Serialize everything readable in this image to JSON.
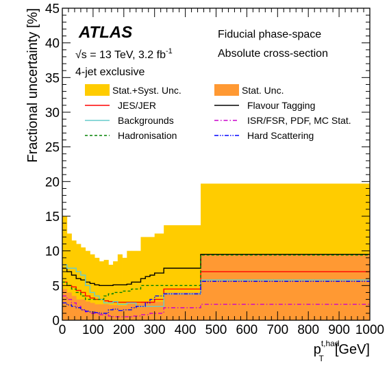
{
  "chart_data": {
    "type": "step",
    "xlabel": "p",
    "xlabel_sup": "t,had",
    "xlabel_sub": "T",
    "xlabel_unit": "[GeV]",
    "ylabel": "Fractional uncertainty [%]",
    "xlim": [
      0,
      1000
    ],
    "ylim": [
      0,
      45
    ],
    "x_ticks": [
      0,
      100,
      200,
      300,
      400,
      500,
      600,
      700,
      800,
      900,
      1000
    ],
    "y_ticks": [
      0,
      5,
      10,
      15,
      20,
      25,
      30,
      35,
      40,
      45
    ],
    "bin_edges": [
      0,
      15,
      30,
      45,
      60,
      75,
      90,
      105,
      120,
      135,
      150,
      165,
      180,
      195,
      210,
      225,
      240,
      255,
      270,
      285,
      300,
      330,
      450,
      1000
    ],
    "annotations": {
      "experiment": "ATLAS",
      "energy": "√s = 13 TeV, 3.2 fb",
      "energy_sup": "-1",
      "selection": "4-jet exclusive",
      "phase_space": "Fiducial phase-space",
      "measurement": "Absolute cross-section"
    },
    "legend": [
      {
        "label": "Stat.+Syst. Unc.",
        "key": "total",
        "style": "fill"
      },
      {
        "label": "Stat. Unc.",
        "key": "stat",
        "style": "fill"
      },
      {
        "label": "JES/JER",
        "key": "jes",
        "style": "solid"
      },
      {
        "label": "Flavour Tagging",
        "key": "flav",
        "style": "solid"
      },
      {
        "label": "Backgrounds",
        "key": "bkg",
        "style": "solid"
      },
      {
        "label": "ISR/FSR, PDF, MC Stat.",
        "key": "isr",
        "style": "dashdot"
      },
      {
        "label": "Hadronisation",
        "key": "had",
        "style": "dashed"
      },
      {
        "label": "Hard Scattering",
        "key": "hs",
        "style": "dashdotdot"
      }
    ],
    "series": [
      {
        "key": "total",
        "color": "#ffcc00",
        "values": [
          15.0,
          12.5,
          11.5,
          11.0,
          10.5,
          10.0,
          9.5,
          9.0,
          8.5,
          8.7,
          8.0,
          8.5,
          9.5,
          9.0,
          10.0,
          10.0,
          10.0,
          12.0,
          12.0,
          12.0,
          12.5,
          13.7,
          19.7
        ]
      },
      {
        "key": "stat",
        "color": "#ff9933",
        "values": [
          4.5,
          4.0,
          3.5,
          3.0,
          3.0,
          2.7,
          2.5,
          2.3,
          2.3,
          2.3,
          2.2,
          2.2,
          2.1,
          2.1,
          2.4,
          2.4,
          2.4,
          2.7,
          2.7,
          2.7,
          2.7,
          4.0,
          9.5
        ]
      },
      {
        "key": "jes",
        "color": "#ff0000",
        "values": [
          5.5,
          5.0,
          4.8,
          4.3,
          4.0,
          3.5,
          3.2,
          3.0,
          3.0,
          2.8,
          2.7,
          2.6,
          2.6,
          2.6,
          2.6,
          2.6,
          2.6,
          2.6,
          2.6,
          2.6,
          3.0,
          4.5,
          7.0
        ]
      },
      {
        "key": "flav",
        "color": "#000000",
        "values": [
          7.5,
          7.0,
          6.5,
          6.0,
          5.8,
          5.5,
          5.3,
          5.1,
          5.0,
          5.0,
          5.0,
          5.1,
          5.1,
          5.1,
          5.2,
          5.5,
          5.5,
          6.0,
          6.3,
          6.5,
          6.8,
          7.5,
          9.5
        ]
      },
      {
        "key": "bkg",
        "color": "#66cccc",
        "values": [
          8.0,
          7.5,
          7.5,
          7.0,
          6.5,
          5.0,
          4.0,
          3.5,
          3.0,
          2.5,
          2.5,
          2.7,
          2.3,
          2.3,
          2.5,
          2.5,
          2.0,
          2.0,
          2.0,
          2.0,
          2.0,
          3.8,
          5.8
        ]
      },
      {
        "key": "isr",
        "color": "#cc00cc",
        "values": [
          3.5,
          3.0,
          2.5,
          2.0,
          1.5,
          1.2,
          1.0,
          1.0,
          0.8,
          0.8,
          0.6,
          0.5,
          0.5,
          0.5,
          0.5,
          0.6,
          0.6,
          0.8,
          0.8,
          1.0,
          1.0,
          1.8,
          2.3
        ]
      },
      {
        "key": "had",
        "color": "#008000",
        "values": [
          5.5,
          5.0,
          4.5,
          4.0,
          3.5,
          3.0,
          3.0,
          3.0,
          3.0,
          3.5,
          3.8,
          4.0,
          4.0,
          4.2,
          4.2,
          4.5,
          4.5,
          5.0,
          5.0,
          5.0,
          5.0,
          5.0,
          9.4
        ]
      },
      {
        "key": "hs",
        "color": "#0000ff",
        "values": [
          2.5,
          2.2,
          2.0,
          1.8,
          1.5,
          1.3,
          1.2,
          1.1,
          1.0,
          1.0,
          1.5,
          1.6,
          1.4,
          1.5,
          1.5,
          1.8,
          2.0,
          2.0,
          2.5,
          3.0,
          3.5,
          3.8,
          5.6
        ]
      }
    ]
  }
}
